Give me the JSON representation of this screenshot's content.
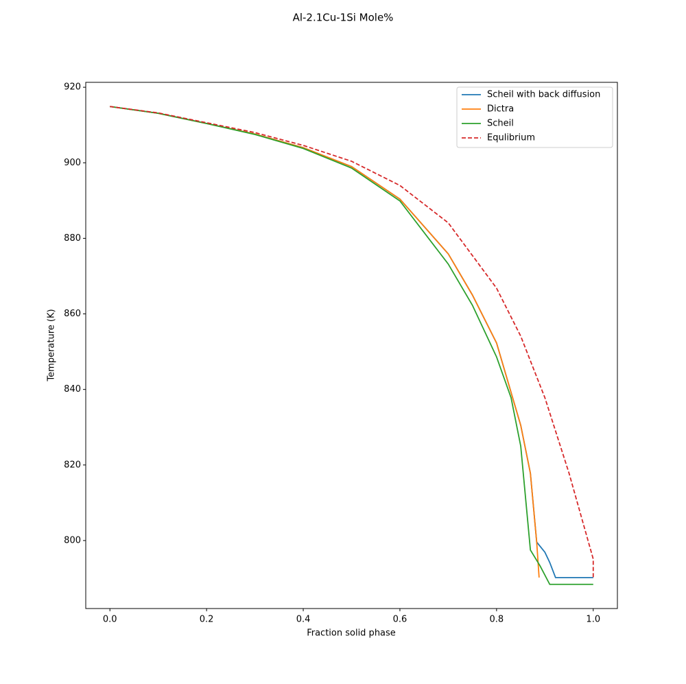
{
  "chart_data": {
    "type": "line",
    "title": "Al-2.1Cu-1Si Mole%",
    "x_label": "Fraction solid phase",
    "y_label": "Temperature (K)",
    "xlim": [
      -0.05,
      1.05
    ],
    "ylim": [
      782.0,
      921.3
    ],
    "xticks": [
      {
        "value": 0,
        "label": "0.0"
      },
      0.2,
      0.4,
      0.6,
      0.8,
      {
        "value": 1,
        "label": "1.0"
      }
    ],
    "yticks": [
      800,
      820,
      840,
      860,
      880,
      900,
      920
    ],
    "legend": "upper right",
    "series": [
      {
        "name": "Scheil with back diffusion",
        "color": "#1f77b4",
        "linestyle": "solid",
        "x": [
          0,
          0.1,
          0.2,
          0.3,
          0.4,
          0.5,
          0.6,
          0.7,
          0.75,
          0.8,
          0.85,
          0.87,
          0.883,
          0.9,
          0.91,
          0.922,
          1.0
        ],
        "values": [
          914.9,
          913.1,
          910.4,
          907.6,
          904.0,
          899.0,
          890.4,
          875.9,
          865.0,
          852.3,
          830.5,
          817.8,
          799.6,
          796.9,
          794.2,
          790.2,
          790.2
        ]
      },
      {
        "name": "Dictra",
        "color": "#ff7f0e",
        "linestyle": "solid",
        "x": [
          0,
          0.1,
          0.2,
          0.3,
          0.4,
          0.5,
          0.6,
          0.7,
          0.75,
          0.8,
          0.85,
          0.87,
          0.883,
          0.888
        ],
        "values": [
          914.9,
          913.1,
          910.4,
          907.6,
          904.0,
          899.0,
          890.4,
          875.9,
          865.0,
          852.3,
          830.5,
          817.8,
          799.6,
          790.2
        ]
      },
      {
        "name": "Scheil",
        "color": "#2ca02c",
        "linestyle": "solid",
        "x": [
          0,
          0.1,
          0.2,
          0.3,
          0.4,
          0.5,
          0.6,
          0.7,
          0.75,
          0.8,
          0.83,
          0.85,
          0.87,
          0.89,
          0.91,
          1.0
        ],
        "values": [
          914.9,
          913.1,
          910.4,
          907.5,
          903.8,
          898.6,
          889.9,
          873.2,
          862.3,
          848.6,
          837.8,
          825.0,
          797.5,
          793.3,
          788.4,
          788.4
        ]
      },
      {
        "name": "Equlibrium",
        "color": "#d62728",
        "linestyle": "dashed",
        "x": [
          0,
          0.1,
          0.2,
          0.3,
          0.4,
          0.5,
          0.6,
          0.7,
          0.8,
          0.85,
          0.9,
          0.95,
          1.0,
          1.0
        ],
        "values": [
          914.9,
          913.2,
          910.6,
          908.0,
          904.6,
          900.4,
          894.0,
          884.1,
          866.8,
          854.1,
          837.8,
          817.8,
          795.1,
          790.2
        ]
      }
    ]
  }
}
